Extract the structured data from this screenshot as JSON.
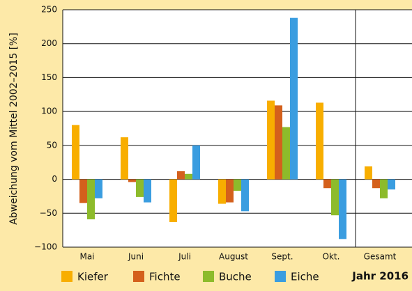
{
  "chart_data": {
    "type": "bar",
    "y_label": "Abweichung vom Mittel 2002–2015 [%]",
    "note": "Jahr 2016",
    "categories": [
      "Mai",
      "Juni",
      "Juli",
      "August",
      "Sept.",
      "Okt.",
      "Gesamt"
    ],
    "series": [
      {
        "name": "Kiefer",
        "color": "#f8ae00",
        "values": [
          80,
          62,
          -63,
          -36,
          116,
          113,
          19
        ]
      },
      {
        "name": "Fichte",
        "color": "#d4601c",
        "values": [
          -35,
          -4,
          12,
          -34,
          109,
          -13,
          -13
        ]
      },
      {
        "name": "Buche",
        "color": "#8dbb2b",
        "values": [
          -59,
          -26,
          8,
          -17,
          77,
          -53,
          -28
        ]
      },
      {
        "name": "Eiche",
        "color": "#3a9de0",
        "values": [
          -28,
          -34,
          50,
          -47,
          238,
          -88,
          -15
        ]
      }
    ],
    "ylim": [
      -100,
      250
    ],
    "yticks": [
      {
        "value": -100,
        "label": "−100"
      },
      {
        "value": -50,
        "label": "−50"
      },
      0,
      50,
      100,
      150,
      200,
      250
    ],
    "grid": true
  }
}
